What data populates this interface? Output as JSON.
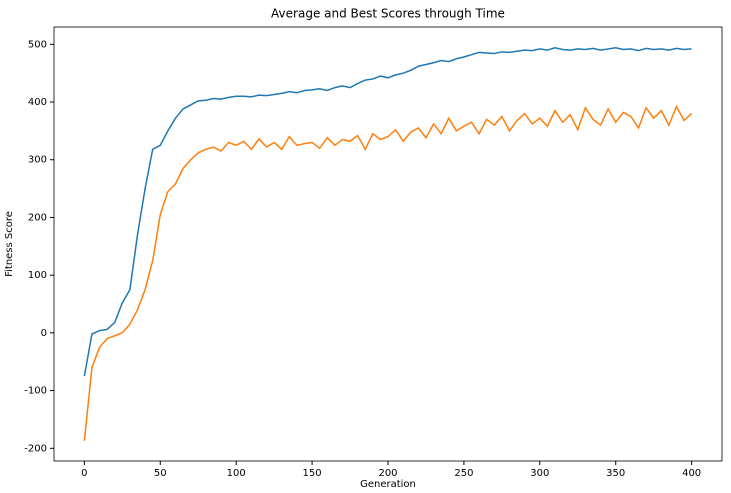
{
  "chart_data": {
    "type": "line",
    "title": "Average and Best Scores through Time",
    "xlabel": "Generation",
    "ylabel": "Fitness Score",
    "x": [
      0,
      5,
      10,
      15,
      20,
      25,
      30,
      35,
      40,
      45,
      50,
      55,
      60,
      65,
      70,
      75,
      80,
      85,
      90,
      95,
      100,
      105,
      110,
      115,
      120,
      125,
      130,
      135,
      140,
      145,
      150,
      155,
      160,
      165,
      170,
      175,
      180,
      185,
      190,
      195,
      200,
      205,
      210,
      215,
      220,
      225,
      230,
      235,
      240,
      245,
      250,
      255,
      260,
      265,
      270,
      275,
      280,
      285,
      290,
      295,
      300,
      305,
      310,
      315,
      320,
      325,
      330,
      335,
      340,
      345,
      350,
      355,
      360,
      365,
      370,
      375,
      380,
      385,
      390,
      395,
      400
    ],
    "series": [
      {
        "color": "#1f77b4",
        "values": [
          -75,
          -2,
          4,
          6,
          18,
          52,
          75,
          170,
          250,
          318,
          325,
          350,
          372,
          388,
          395,
          402,
          403,
          406,
          405,
          408,
          410,
          410,
          409,
          412,
          411,
          413,
          415,
          418,
          416,
          420,
          421,
          423,
          420,
          425,
          428,
          425,
          432,
          438,
          440,
          445,
          442,
          447,
          450,
          455,
          462,
          465,
          468,
          472,
          470,
          475,
          478,
          482,
          486,
          485,
          484,
          487,
          486,
          488,
          490,
          489,
          492,
          490,
          494,
          491,
          490,
          492,
          491,
          493,
          490,
          492,
          494,
          491,
          492,
          489,
          493,
          491,
          492,
          490,
          493,
          491,
          492
        ]
      },
      {
        "color": "#ff7f0e",
        "values": [
          -187,
          -60,
          -25,
          -10,
          -5,
          0,
          15,
          40,
          75,
          125,
          205,
          245,
          258,
          285,
          300,
          312,
          318,
          322,
          315,
          330,
          325,
          332,
          318,
          336,
          322,
          330,
          318,
          340,
          325,
          328,
          330,
          320,
          338,
          325,
          335,
          332,
          342,
          318,
          345,
          335,
          340,
          352,
          332,
          348,
          355,
          338,
          362,
          345,
          372,
          350,
          358,
          365,
          345,
          370,
          360,
          375,
          350,
          368,
          380,
          362,
          372,
          358,
          385,
          365,
          378,
          352,
          390,
          370,
          360,
          388,
          365,
          382,
          375,
          355,
          390,
          372,
          385,
          360,
          392,
          368,
          380
        ]
      }
    ],
    "xlim": [
      -20,
      420
    ],
    "ylim": [
      -222,
      530
    ],
    "xticks": [
      0,
      50,
      100,
      150,
      200,
      250,
      300,
      350,
      400
    ],
    "yticks": [
      -200,
      -100,
      0,
      100,
      200,
      300,
      400,
      500
    ]
  }
}
